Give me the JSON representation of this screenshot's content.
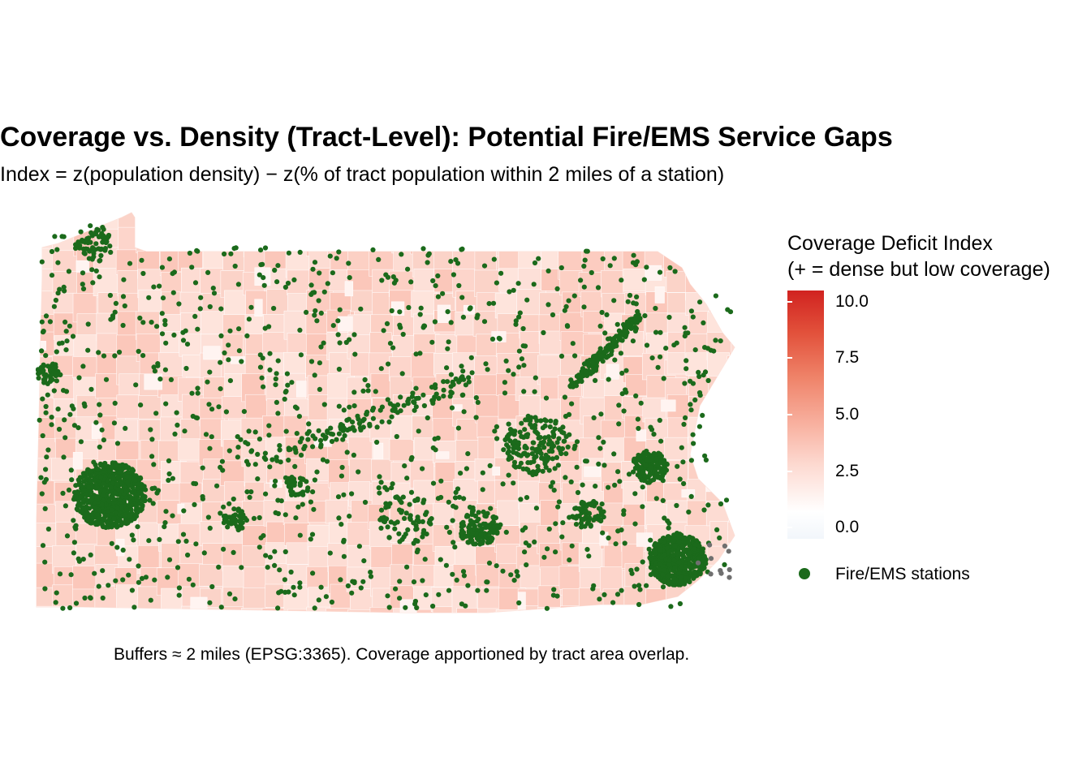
{
  "title": "Coverage vs. Density (Tract-Level): Potential Fire/EMS Service Gaps",
  "subtitle": "Index = z(population density) − z(% of tract population within 2 miles of a station)",
  "legend": {
    "title_line1": "Coverage Deficit Index",
    "title_line2": "(+ = dense but low coverage)",
    "scale": {
      "min": -0.5,
      "max": 10.5,
      "ticks": [
        {
          "value": 10.0,
          "label": "10.0"
        },
        {
          "value": 7.5,
          "label": "7.5"
        },
        {
          "value": 5.0,
          "label": "5.0"
        },
        {
          "value": 2.5,
          "label": "2.5"
        },
        {
          "value": 0.0,
          "label": "0.0"
        }
      ],
      "colors": {
        "low": "#f2f6fb",
        "mid": "#ffffff",
        "high": "#d12320"
      }
    },
    "points_label": "Fire/EMS stations",
    "points_color": "#1b6a1b"
  },
  "caption": "Buffers ≈ 2 miles (EPSG:3365). Coverage apportioned by tract area overlap.",
  "map": {
    "region_fill": "#fdd9d0",
    "tract_border": "#ffffff"
  }
}
